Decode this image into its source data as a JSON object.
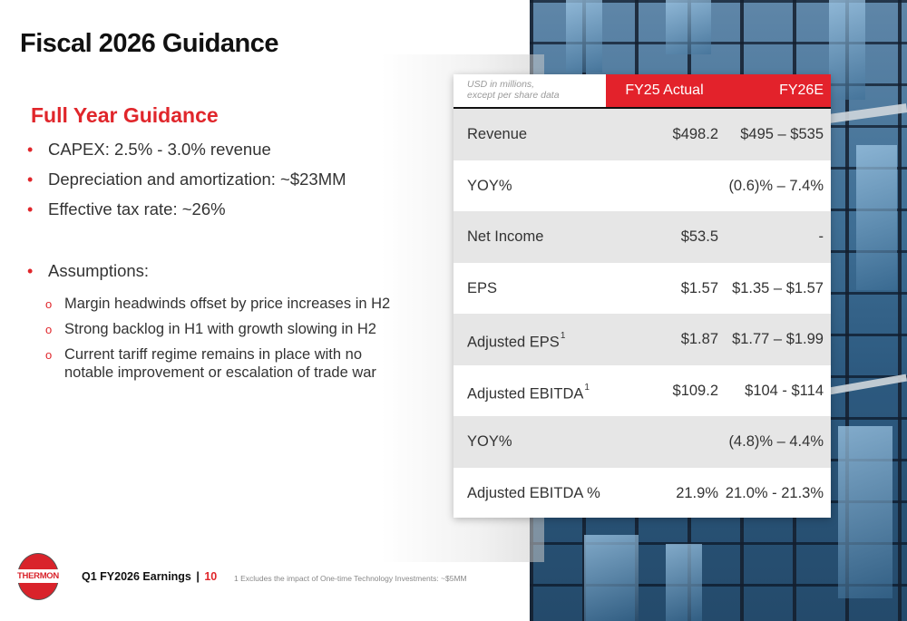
{
  "slide": {
    "title": "Fiscal 2026 Guidance"
  },
  "guidance": {
    "heading": "Full Year Guidance",
    "bullets": [
      "CAPEX:  2.5% - 3.0% revenue",
      "Depreciation and amortization: ~$23MM",
      "Effective tax rate: ~26%"
    ],
    "assumptions_label": "Assumptions:",
    "assumptions": [
      [
        "Margin headwinds offset by price increases in H2"
      ],
      [
        "Strong backlog in H1 with growth slowing in H2"
      ],
      [
        "Current tariff regime remains in place with no",
        "notable improvement or escalation of trade war"
      ]
    ]
  },
  "table": {
    "unit_note_line1": "USD in millions,",
    "unit_note_line2": "except per share data",
    "columns": [
      "FY25 Actual",
      "FY26E"
    ],
    "header_color": "#e3222b",
    "rows": [
      {
        "label": "Revenue",
        "sup": "",
        "fy25": "$498.2",
        "fy26": "$495 – $535"
      },
      {
        "label": "YOY%",
        "sup": "",
        "fy25": "",
        "fy26": "(0.6)% – 7.4%"
      },
      {
        "label": "Net Income",
        "sup": "",
        "fy25": "$53.5",
        "fy26": "-"
      },
      {
        "label": "EPS",
        "sup": "",
        "fy25": "$1.57",
        "fy26": "$1.35 – $1.57"
      },
      {
        "label": "Adjusted EPS",
        "sup": "1",
        "fy25": "$1.87",
        "fy26": "$1.77 – $1.99"
      },
      {
        "label": "Adjusted EBITDA",
        "sup": "1",
        "fy25": "$109.2",
        "fy26": "$104 - $114"
      },
      {
        "label": "YOY%",
        "sup": "",
        "fy25": "",
        "fy26": "(4.8)% – 4.4%"
      },
      {
        "label": "Adjusted EBITDA %",
        "sup": "",
        "fy25": "21.9%",
        "fy26": "21.0%  - 21.3%"
      }
    ]
  },
  "footer": {
    "logo_text": "THERMON",
    "deck_title": "Q1 FY2026 Earnings",
    "separator": "|",
    "page_number": "10",
    "footnote": "1 Excludes the impact of One-time Technology Investments: ~$5MM"
  }
}
